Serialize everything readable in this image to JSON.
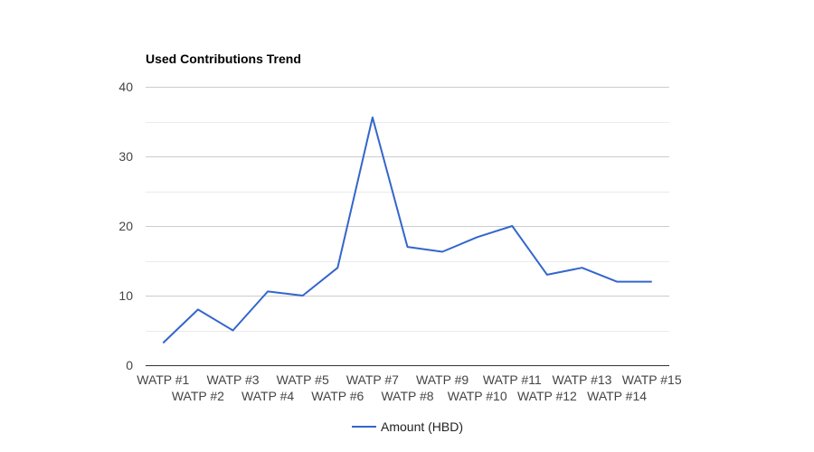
{
  "chart_data": {
    "type": "line",
    "title": "Used Contributions Trend",
    "xlabel": "",
    "ylabel": "",
    "categories": [
      "WATP #1",
      "WATP #2",
      "WATP #3",
      "WATP #4",
      "WATP #5",
      "WATP #6",
      "WATP #7",
      "WATP #8",
      "WATP #9",
      "WATP #10",
      "WATP #11",
      "WATP #12",
      "WATP #13",
      "WATP #14",
      "WATP #15"
    ],
    "series": [
      {
        "name": "Amount (HBD)",
        "values": [
          3.2,
          8.0,
          5.0,
          10.6,
          10.0,
          14.0,
          35.6,
          17.0,
          16.3,
          18.4,
          20.0,
          13.0,
          14.0,
          12.0,
          12.0
        ],
        "color": "#3366cc"
      }
    ],
    "ylim": [
      0,
      40
    ],
    "yticks": [
      0,
      10,
      20,
      30,
      40
    ],
    "grid": true,
    "minor_grid": true,
    "legend": "bottom"
  }
}
